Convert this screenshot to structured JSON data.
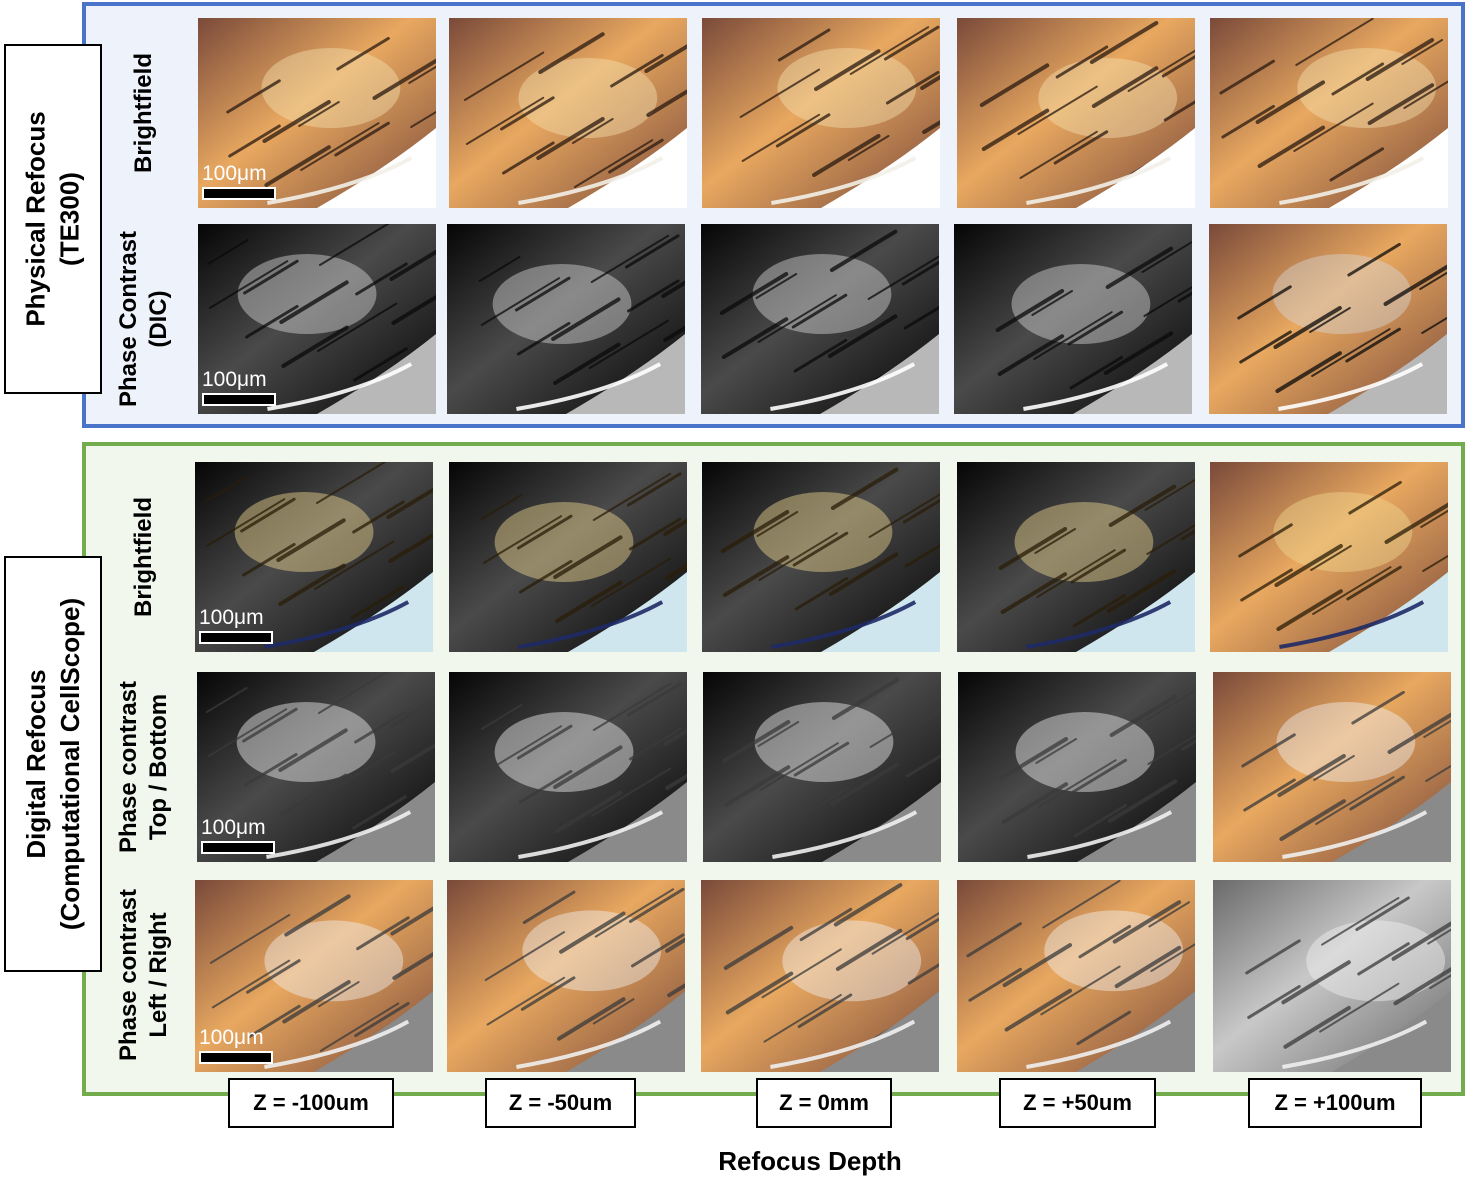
{
  "physical_group": {
    "line1": "Physical Refocus",
    "line2": "(TE300)"
  },
  "digital_group": {
    "line1": "Digital Refocus",
    "line2": "(Computational CellScope)"
  },
  "row_labels": {
    "phys_brightfield": {
      "line1": "Brightfield"
    },
    "phys_phase": {
      "line1": "Phase Contrast",
      "line2": "(DIC)"
    },
    "dig_brightfield": {
      "line1": "Brightfield"
    },
    "dig_phase_tb": {
      "line1": "Phase contrast",
      "line2": "Top / Bottom"
    },
    "dig_phase_lr": {
      "line1": "Phase contrast",
      "line2": "Left / Right"
    }
  },
  "scale_bar_label": "100μm",
  "depths": [
    "Z = -100um",
    "Z = -50um",
    "Z = 0mm",
    "Z = +50um",
    "Z = +100um"
  ],
  "axis_label": "Refocus Depth",
  "colors": {
    "physical_border": "#4a74c9",
    "digital_border": "#72ac4d"
  }
}
